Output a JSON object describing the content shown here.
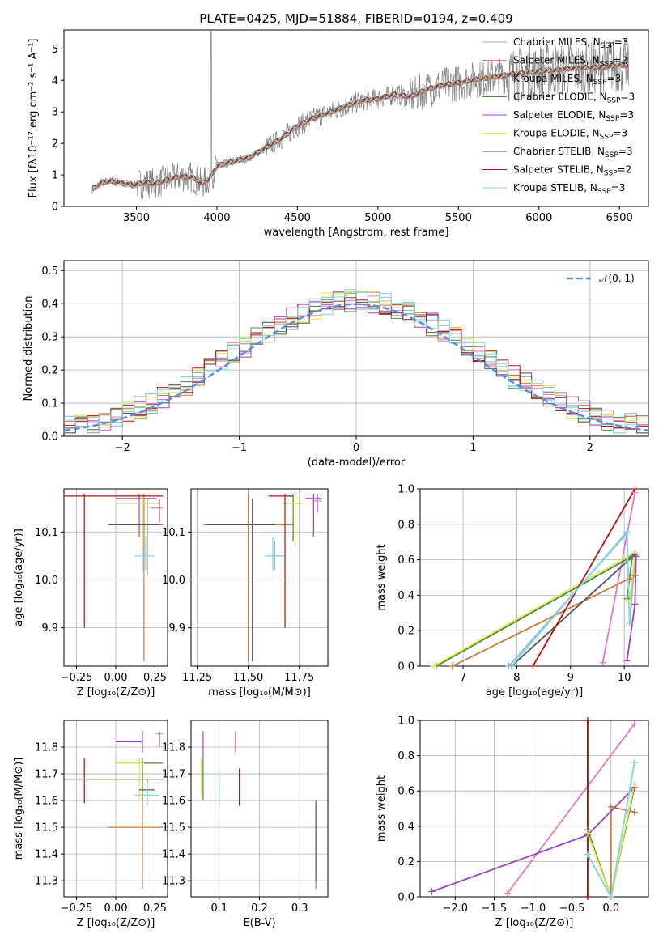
{
  "figure_title": "PLATE=0425, MJD=51884, FIBERID=0194, z=0.409",
  "colors": {
    "chabrier_miles": "#8ab6d6",
    "salpeter_miles": "#e377c2",
    "kroupa_miles": "#c97a3a",
    "chabrier_elodie": "#4c8a3c",
    "salpeter_elodie": "#9f3fbf",
    "kroupa_elodie": "#dfe94a",
    "chabrier_stelib": "#555555",
    "salpeter_stelib": "#b31010",
    "kroupa_stelib": "#7fd9e6",
    "data": "#808080",
    "gauss": "#5b8fd8"
  },
  "legend_spectrum": [
    {
      "text": "Chabrier MILES, N",
      "sub": "SSP",
      "tail": "=3",
      "color_key": "chabrier_miles"
    },
    {
      "text": "Salpeter MILES, N",
      "sub": "SSP",
      "tail": "=2",
      "color_key": "salpeter_miles"
    },
    {
      "text": "Kroupa MILES, N",
      "sub": "SSP",
      "tail": "=3",
      "color_key": "kroupa_miles"
    },
    {
      "text": "Chabrier ELODIE, N",
      "sub": "SSP",
      "tail": "=3",
      "color_key": "chabrier_elodie"
    },
    {
      "text": "Salpeter ELODIE, N",
      "sub": "SSP",
      "tail": "=3",
      "color_key": "salpeter_elodie"
    },
    {
      "text": "Kroupa ELODIE, N",
      "sub": "SSP",
      "tail": "=3",
      "color_key": "kroupa_elodie"
    },
    {
      "text": "Chabrier STELIB, N",
      "sub": "SSP",
      "tail": "=3",
      "color_key": "chabrier_stelib"
    },
    {
      "text": "Salpeter STELIB, N",
      "sub": "SSP",
      "tail": "=2",
      "color_key": "salpeter_stelib"
    },
    {
      "text": "Kroupa STELIB, N",
      "sub": "SSP",
      "tail": "=3",
      "color_key": "kroupa_stelib"
    }
  ],
  "legend_hist": "𝒩(0, 1)",
  "chart_data": [
    {
      "id": "spectrum",
      "type": "line",
      "xlabel": "wavelength [Angstrom, rest frame]",
      "ylabel": "Flux [fλ10⁻¹⁷ erg cm⁻² s⁻¹ A⁻¹]",
      "xlim": [
        3050,
        6680
      ],
      "ylim": [
        0,
        5.6
      ],
      "xticks": [
        3500,
        4000,
        4500,
        5000,
        5500,
        6000,
        6500
      ],
      "yticks": [
        0,
        1,
        2,
        3,
        4,
        5
      ],
      "model_continuum": [
        [
          3220,
          0.52
        ],
        [
          3280,
          0.74
        ],
        [
          3350,
          0.8
        ],
        [
          3420,
          0.72
        ],
        [
          3480,
          0.68
        ],
        [
          3550,
          0.75
        ],
        [
          3620,
          0.72
        ],
        [
          3700,
          0.85
        ],
        [
          3780,
          0.95
        ],
        [
          3850,
          0.92
        ],
        [
          3900,
          0.72
        ],
        [
          3950,
          0.85
        ],
        [
          4000,
          1.28
        ],
        [
          4100,
          1.42
        ],
        [
          4200,
          1.55
        ],
        [
          4300,
          1.85
        ],
        [
          4400,
          2.15
        ],
        [
          4500,
          2.55
        ],
        [
          4600,
          2.8
        ],
        [
          4700,
          2.98
        ],
        [
          4800,
          3.18
        ],
        [
          4900,
          3.35
        ],
        [
          5000,
          3.42
        ],
        [
          5100,
          3.55
        ],
        [
          5200,
          3.48
        ],
        [
          5300,
          3.7
        ],
        [
          5400,
          3.85
        ],
        [
          5500,
          3.92
        ],
        [
          5600,
          4.02
        ],
        [
          5700,
          4.08
        ],
        [
          5800,
          4.18
        ],
        [
          5900,
          4.22
        ],
        [
          6000,
          4.28
        ],
        [
          6100,
          4.32
        ],
        [
          6200,
          4.38
        ],
        [
          6300,
          4.4
        ],
        [
          6400,
          4.42
        ],
        [
          6500,
          4.48
        ],
        [
          6560,
          4.46
        ]
      ]
    },
    {
      "id": "residuals",
      "type": "histogram",
      "xlabel": "(data-model)/error",
      "ylabel": "Normed distribution",
      "xlim": [
        -2.5,
        2.5
      ],
      "ylim": [
        0,
        0.53
      ],
      "xticks": [
        -2,
        -1,
        0,
        1,
        2
      ],
      "yticks": [
        0.0,
        0.1,
        0.2,
        0.3,
        0.4,
        0.5
      ],
      "bin_width": 0.1,
      "gauss_series": "𝒩(0, 1)"
    },
    {
      "id": "age_vs_Z",
      "type": "scatter",
      "xlabel": "Z [log₁₀(Z/Z⊙)]",
      "ylabel": "age  [log₁₀(age/yr)]",
      "xlim": [
        -0.33,
        0.33
      ],
      "ylim": [
        9.82,
        10.19
      ],
      "xticks": [
        -0.25,
        0.0,
        0.25
      ],
      "yticks": [
        9.9,
        10.0,
        10.1
      ],
      "points": [
        {
          "key": "chabrier_miles",
          "x": 0.17,
          "xe": [
            0.0,
            0.17
          ],
          "y": 10.16,
          "ye": [
            10.02,
            10.18
          ]
        },
        {
          "key": "salpeter_miles",
          "x": 0.28,
          "xe": [
            0.22,
            0.3
          ],
          "y": 10.15,
          "ye": [
            10.12,
            10.17
          ]
        },
        {
          "key": "kroupa_miles",
          "x": 0.18,
          "xe": [
            -0.05,
            0.3
          ],
          "y": 10.115,
          "ye": [
            9.83,
            10.18
          ]
        },
        {
          "key": "chabrier_elodie",
          "x": 0.17,
          "xe": [
            0.0,
            0.28
          ],
          "y": 10.16,
          "ye": [
            10.08,
            10.18
          ]
        },
        {
          "key": "salpeter_elodie",
          "x": 0.15,
          "xe": [
            0.0,
            0.26
          ],
          "y": 10.17,
          "ye": [
            10.09,
            10.18
          ]
        },
        {
          "key": "kroupa_elodie",
          "x": 0.17,
          "xe": [
            0.0,
            0.27
          ],
          "y": 10.16,
          "ye": [
            10.07,
            10.18
          ]
        },
        {
          "key": "chabrier_stelib",
          "x": 0.2,
          "xe": [
            -0.04,
            0.27
          ],
          "y": 10.115,
          "ye": [
            10.01,
            10.17
          ]
        },
        {
          "key": "salpeter_stelib",
          "x": -0.2,
          "xe": [
            -0.33,
            0.3
          ],
          "y": 10.175,
          "ye": [
            9.9,
            10.18
          ]
        },
        {
          "key": "kroupa_stelib",
          "x": 0.19,
          "xe": [
            0.12,
            0.25
          ],
          "y": 10.05,
          "ye": [
            10.02,
            10.09
          ]
        }
      ]
    },
    {
      "id": "age_vs_mass",
      "type": "scatter",
      "xlabel": "mass [log₁₀(M/M⊙)]",
      "ylabel": "",
      "xlim": [
        11.22,
        11.89
      ],
      "ylim": [
        9.82,
        10.19
      ],
      "xticks": [
        11.25,
        11.5,
        11.75
      ],
      "yticks": [
        9.9,
        10.0,
        10.1
      ],
      "points": [
        {
          "key": "chabrier_miles",
          "x": 11.63,
          "xe": [
            11.6,
            11.68
          ],
          "y": 10.05,
          "ye": [
            10.02,
            10.08
          ]
        },
        {
          "key": "salpeter_miles",
          "x": 11.84,
          "xe": [
            11.82,
            11.86
          ],
          "y": 10.165,
          "ye": [
            10.14,
            10.18
          ]
        },
        {
          "key": "kroupa_miles",
          "x": 11.5,
          "xe": [
            11.28,
            11.72
          ],
          "y": 10.115,
          "ye": [
            9.83,
            10.18
          ]
        },
        {
          "key": "chabrier_elodie",
          "x": 11.72,
          "xe": [
            11.67,
            11.76
          ],
          "y": 10.16,
          "ye": [
            10.08,
            10.18
          ]
        },
        {
          "key": "salpeter_elodie",
          "x": 11.82,
          "xe": [
            11.78,
            11.86
          ],
          "y": 10.17,
          "ye": [
            10.09,
            10.18
          ]
        },
        {
          "key": "kroupa_elodie",
          "x": 11.73,
          "xe": [
            11.69,
            11.77
          ],
          "y": 10.16,
          "ye": [
            10.07,
            10.18
          ]
        },
        {
          "key": "chabrier_stelib",
          "x": 11.52,
          "xe": [
            11.3,
            11.63
          ],
          "y": 10.115,
          "ye": [
            9.83,
            10.17
          ]
        },
        {
          "key": "salpeter_stelib",
          "x": 11.68,
          "xe": [
            11.6,
            11.72
          ],
          "y": 10.175,
          "ye": [
            9.9,
            10.18
          ]
        },
        {
          "key": "kroupa_stelib",
          "x": 11.62,
          "xe": [
            11.58,
            11.66
          ],
          "y": 10.05,
          "ye": [
            10.02,
            10.09
          ]
        }
      ]
    },
    {
      "id": "mass_weight_vs_age",
      "type": "line",
      "xlabel": "age  [log₁₀(age/yr)]",
      "ylabel": "mass weight",
      "xlim": [
        6.2,
        10.45
      ],
      "ylim": [
        0,
        1.0
      ],
      "xticks": [
        7,
        8,
        9,
        10
      ],
      "yticks": [
        0.0,
        0.2,
        0.4,
        0.6,
        0.8,
        1.0
      ],
      "series": [
        {
          "key": "chabrier_miles",
          "points": [
            [
              7.85,
              0.0
            ],
            [
              10.05,
              0.75
            ],
            [
              10.1,
              0.24
            ],
            [
              10.2,
              0.62
            ]
          ]
        },
        {
          "key": "salpeter_miles",
          "points": [
            [
              9.6,
              0.02
            ],
            [
              10.2,
              0.98
            ]
          ]
        },
        {
          "key": "kroupa_miles",
          "points": [
            [
              6.8,
              0.0
            ],
            [
              10.2,
              0.51
            ],
            [
              10.1,
              0.49
            ]
          ]
        },
        {
          "key": "chabrier_elodie",
          "points": [
            [
              6.5,
              0.0
            ],
            [
              10.15,
              0.62
            ],
            [
              10.05,
              0.38
            ]
          ]
        },
        {
          "key": "salpeter_elodie",
          "points": [
            [
              10.05,
              0.03
            ],
            [
              10.2,
              0.35
            ],
            [
              10.22,
              0.62
            ]
          ]
        },
        {
          "key": "kroupa_elodie",
          "points": [
            [
              6.45,
              0.0
            ],
            [
              10.2,
              0.64
            ],
            [
              10.1,
              0.36
            ]
          ]
        },
        {
          "key": "chabrier_stelib",
          "points": [
            [
              7.9,
              0.0
            ],
            [
              10.2,
              0.63
            ]
          ]
        },
        {
          "key": "salpeter_stelib",
          "points": [
            [
              8.3,
              0.0
            ],
            [
              10.2,
              1.0
            ]
          ]
        },
        {
          "key": "kroupa_stelib",
          "points": [
            [
              7.9,
              0.0
            ],
            [
              10.05,
              0.76
            ],
            [
              10.1,
              0.24
            ]
          ]
        }
      ]
    },
    {
      "id": "mass_vs_Z",
      "type": "scatter",
      "xlabel": "Z [log₁₀(Z/Z⊙)]",
      "ylabel": "mass [log₁₀(M/M⊙)]",
      "xlim": [
        -0.33,
        0.33
      ],
      "ylim": [
        11.24,
        11.9
      ],
      "xticks": [
        -0.25,
        0.0,
        0.25
      ],
      "yticks": [
        11.3,
        11.4,
        11.5,
        11.6,
        11.7,
        11.8
      ],
      "points": [
        {
          "key": "chabrier_miles",
          "x": 0.2,
          "xe": [
            0.12,
            0.27
          ],
          "y": 11.62,
          "ye": [
            11.58,
            11.66
          ]
        },
        {
          "key": "salpeter_miles",
          "x": 0.28,
          "xe": [
            0.26,
            0.3
          ],
          "y": 11.85,
          "ye": [
            11.8,
            11.86
          ]
        },
        {
          "key": "kroupa_miles",
          "x": 0.17,
          "xe": [
            -0.05,
            0.3
          ],
          "y": 11.5,
          "ye": [
            11.27,
            11.72
          ]
        },
        {
          "key": "chabrier_elodie",
          "x": 0.17,
          "xe": [
            0.0,
            0.3
          ],
          "y": 11.74,
          "ye": [
            11.6,
            11.76
          ]
        },
        {
          "key": "salpeter_elodie",
          "x": 0.17,
          "xe": [
            0.0,
            0.17
          ],
          "y": 11.82,
          "ye": [
            11.78,
            11.86
          ]
        },
        {
          "key": "kroupa_elodie",
          "x": 0.15,
          "xe": [
            0.0,
            0.18
          ],
          "y": 11.74,
          "ye": [
            11.6,
            11.76
          ]
        },
        {
          "key": "chabrier_stelib",
          "x": 0.2,
          "xe": [
            0.15,
            0.25
          ],
          "y": 11.64,
          "ye": [
            11.58,
            11.68
          ]
        },
        {
          "key": "salpeter_stelib",
          "x": -0.2,
          "xe": [
            -0.33,
            0.3
          ],
          "y": 11.68,
          "ye": [
            11.59,
            11.76
          ]
        },
        {
          "key": "kroupa_stelib",
          "x": 0.2,
          "xe": [
            0.12,
            0.26
          ],
          "y": 11.62,
          "ye": [
            11.58,
            11.66
          ]
        }
      ]
    },
    {
      "id": "mass_vs_ebv",
      "type": "scatter",
      "xlabel": "E(B-V)",
      "ylabel": "",
      "xlim": [
        0.03,
        0.37
      ],
      "ylim": [
        11.24,
        11.9
      ],
      "xticks": [
        0.1,
        0.2,
        0.3
      ],
      "yticks": [
        11.3,
        11.4,
        11.5,
        11.6,
        11.7,
        11.8
      ],
      "points": [
        {
          "key": "chabrier_miles",
          "x": 0.1,
          "ye": [
            11.58,
            11.68
          ]
        },
        {
          "key": "salpeter_miles",
          "x": 0.14,
          "ye": [
            11.78,
            11.86
          ]
        },
        {
          "key": "kroupa_miles",
          "x": 0.34,
          "ye": [
            11.27,
            11.58
          ]
        },
        {
          "key": "chabrier_elodie",
          "x": 0.06,
          "ye": [
            11.6,
            11.76
          ]
        },
        {
          "key": "salpeter_elodie",
          "x": 0.06,
          "ye": [
            11.76,
            11.86
          ]
        },
        {
          "key": "kroupa_elodie",
          "x": 0.055,
          "ye": [
            11.62,
            11.76
          ]
        },
        {
          "key": "chabrier_stelib",
          "x": 0.34,
          "ye": [
            11.3,
            11.6
          ]
        },
        {
          "key": "salpeter_stelib",
          "x": 0.15,
          "ye": [
            11.58,
            11.72
          ]
        },
        {
          "key": "kroupa_stelib",
          "x": 0.1,
          "ye": [
            11.6,
            11.7
          ]
        }
      ]
    },
    {
      "id": "mass_weight_vs_Z",
      "type": "line",
      "xlabel": "Z [log₁₀(Z/Z⊙)]",
      "ylabel": "mass weight",
      "xlim": [
        -2.45,
        0.48
      ],
      "ylim": [
        0,
        1.0
      ],
      "xticks": [
        -2.0,
        -1.5,
        -1.0,
        -0.5,
        0.0
      ],
      "yticks": [
        0.0,
        0.2,
        0.4,
        0.6,
        0.8,
        1.0
      ],
      "series": [
        {
          "key": "chabrier_miles",
          "points": [
            [
              -0.3,
              0.24
            ],
            [
              0.0,
              0.0
            ],
            [
              0.3,
              0.76
            ]
          ]
        },
        {
          "key": "salpeter_miles",
          "points": [
            [
              -1.33,
              0.02
            ],
            [
              0.3,
              0.98
            ]
          ]
        },
        {
          "key": "kroupa_miles",
          "points": [
            [
              0.0,
              0.0
            ],
            [
              0.0,
              0.51
            ],
            [
              0.3,
              0.48
            ]
          ]
        },
        {
          "key": "chabrier_elodie",
          "points": [
            [
              -0.3,
              0.38
            ],
            [
              0.0,
              0.0
            ],
            [
              0.3,
              0.62
            ]
          ]
        },
        {
          "key": "salpeter_elodie",
          "points": [
            [
              -2.3,
              0.03
            ],
            [
              -0.3,
              0.35
            ],
            [
              0.3,
              0.62
            ]
          ]
        },
        {
          "key": "kroupa_elodie",
          "points": [
            [
              -0.3,
              0.36
            ],
            [
              0.0,
              0.0
            ],
            [
              0.3,
              0.64
            ]
          ]
        },
        {
          "key": "chabrier_stelib",
          "points": [
            [
              -0.3,
              0.0
            ],
            [
              -0.3,
              1.0
            ]
          ]
        },
        {
          "key": "salpeter_stelib",
          "points": [
            [
              -0.3,
              0.0
            ],
            [
              -0.3,
              1.0
            ]
          ]
        },
        {
          "key": "kroupa_stelib",
          "points": [
            [
              -0.3,
              0.24
            ],
            [
              0.0,
              0.0
            ],
            [
              0.3,
              0.76
            ]
          ]
        }
      ]
    }
  ]
}
